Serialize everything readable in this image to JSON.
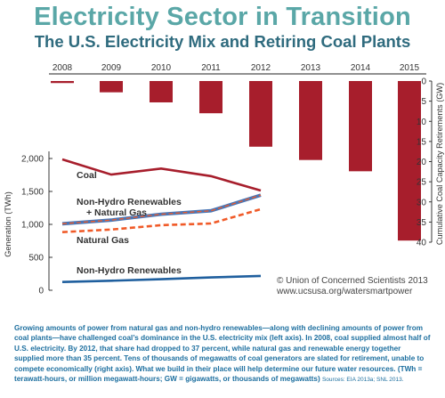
{
  "header": {
    "title": "Electricity Sector in Transition",
    "subtitle": "The U.S. Electricity Mix and Retiring Coal Plants"
  },
  "chart_data": {
    "type": "bar+line",
    "years": [
      "2008",
      "2009",
      "2010",
      "2011",
      "2012",
      "2013",
      "2014",
      "2015"
    ],
    "bars": {
      "name": "Cumulative Coal Capacity Retirements (GW)",
      "axis": "right",
      "values": [
        0.5,
        2.8,
        5.3,
        8.0,
        16.3,
        19.6,
        22.4,
        39.6
      ],
      "ylim": [
        0,
        40
      ],
      "ticks": [
        "0",
        "5",
        "10",
        "15",
        "20",
        "25",
        "30",
        "35",
        "40"
      ],
      "color": "#a71e2c"
    },
    "ylabel_right": "Cumulative Coal Capacity Retirements (GW)",
    "ylabel_left": "Generation (TWh)",
    "ylim_left": [
      0,
      2000
    ],
    "yticks_left": [
      "0",
      "500",
      "1,000",
      "1,500",
      "2,000"
    ],
    "series": [
      {
        "name": "Coal",
        "values": [
          1986,
          1756,
          1847,
          1733,
          1514
        ],
        "color": "#a71e2c",
        "style": "solid"
      },
      {
        "name": "Non-Hydro Renewables + Natural Gas",
        "values": [
          1009,
          1065,
          1154,
          1207,
          1443
        ],
        "color": "#3f6fa8",
        "style": "solid-dashed"
      },
      {
        "name": "Natural Gas",
        "values": [
          883,
          921,
          988,
          1014,
          1231
        ],
        "color": "#f05a28",
        "style": "dashed"
      },
      {
        "name": "Non-Hydro Renewables",
        "values": [
          126,
          144,
          167,
          194,
          218
        ],
        "color": "#1f5f9e",
        "style": "solid"
      }
    ]
  },
  "credit": {
    "line1": "© Union of Concerned Scientists 2013",
    "line2": "www.ucsusa.org/watersmartpower"
  },
  "caption": {
    "text": "Growing amounts of power from natural gas and non-hydro renewables—along with declining amounts of power from coal plants—have challenged coal’s dominance in the U.S. electricity mix (left axis). In 2008, coal supplied almost half of U.S. electricity. By 2012, that share had dropped to 37 percent, while natural gas and renewable energy together supplied more than 35 percent. Tens of thousands of megawatts of coal generators are slated for retirement, unable to compete economically (right axis). What we build in their place will help determine our future water resources. (TWh = terawatt-hours, or million megawatt-hours; GW = gigawatts, or thousands of megawatts)",
    "sources": "Sources: EIA 2013a; SNL 2013."
  }
}
